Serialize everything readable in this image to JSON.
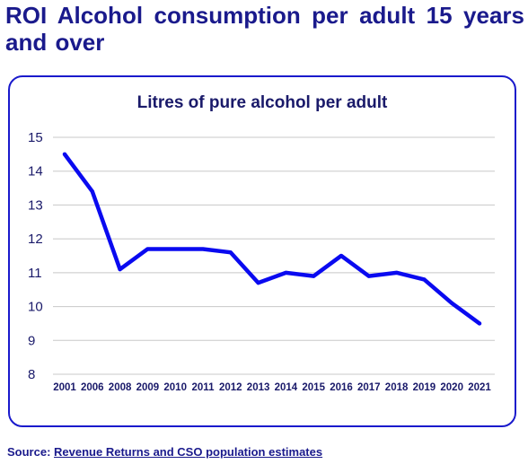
{
  "page": {
    "title": "ROI Alcohol consumption per adult 15 years and over"
  },
  "source": {
    "label": "Source:",
    "link_text": "Revenue Returns and CSO population estimates"
  },
  "colors": {
    "line": "#0a0af0",
    "frame": "#1a1acc",
    "text": "#1a1a8c",
    "grid": "#c8c8c8"
  },
  "chart_data": {
    "type": "line",
    "title": "Litres of pure alcohol per adult",
    "xlabel": "",
    "ylabel": "",
    "categories": [
      "2001",
      "2006",
      "2008",
      "2009",
      "2010",
      "2011",
      "2012",
      "2013",
      "2014",
      "2015",
      "2016",
      "2017",
      "2018",
      "2019",
      "2020",
      "2021"
    ],
    "series": [
      {
        "values": [
          14.5,
          13.4,
          11.1,
          11.7,
          11.7,
          11.7,
          11.6,
          10.7,
          11.0,
          10.9,
          11.5,
          10.9,
          11.0,
          10.8,
          10.1,
          9.5
        ]
      }
    ],
    "ylim": [
      8,
      15
    ],
    "yticks": [
      8,
      9,
      10,
      11,
      12,
      13,
      14,
      15
    ],
    "grid": true,
    "legend": "none"
  }
}
